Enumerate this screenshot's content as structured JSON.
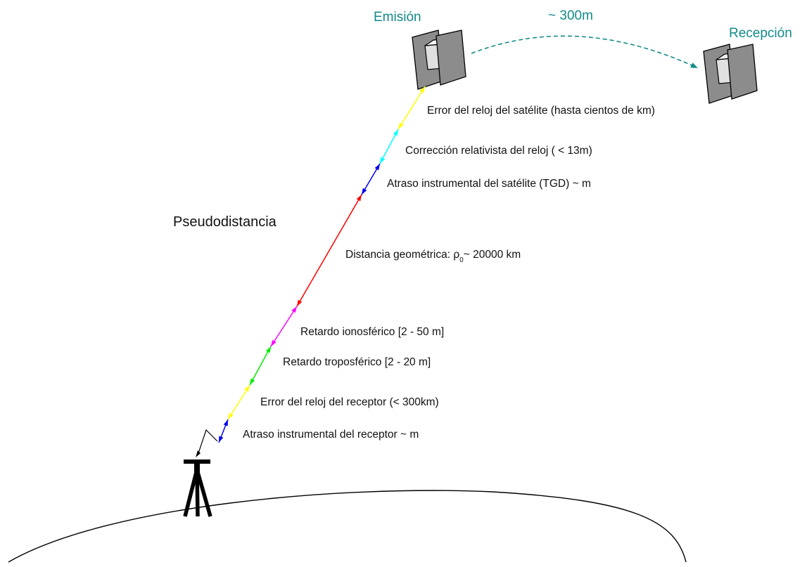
{
  "labels": {
    "emission": "Emisión",
    "reception": "Recepción",
    "distance_sat": "~ 300m",
    "pseudorange": "Pseudodistancia"
  },
  "geometric": {
    "prefix": "Distancia geométrica: ",
    "rho": "ρ",
    "rho_sub": "0",
    "suffix": "~ 20000 km"
  },
  "segments": [
    {
      "label": "Error del reloj del satélite (hasta cientos de km)",
      "color": "#ffff00"
    },
    {
      "label": "Corrección relativista del reloj ( < 13m)",
      "color": "#00ffff"
    },
    {
      "label": "Atraso instrumental del satélite (TGD) ~ m",
      "color": "#0000ee"
    },
    {
      "label": "",
      "color": "#ff0000"
    },
    {
      "label": "Retardo ionosférico [2 - 50 m]",
      "color": "#ff00ff"
    },
    {
      "label": "Retardo troposférico [2 - 20 m]",
      "color": "#00ee00"
    },
    {
      "label": "Error del reloj del receptor (< 300km)",
      "color": "#ffff00"
    },
    {
      "label": "Atraso instrumental del receptor ~ m",
      "color": "#0000ee"
    }
  ],
  "colors": {
    "accent_teal": "#138a8a",
    "satellite_panel": "#8c8c8c",
    "satellite_body": "#e0e0e0"
  },
  "icons": {
    "satellite": "satellite-icon",
    "tripod": "tripod-receiver-icon"
  }
}
